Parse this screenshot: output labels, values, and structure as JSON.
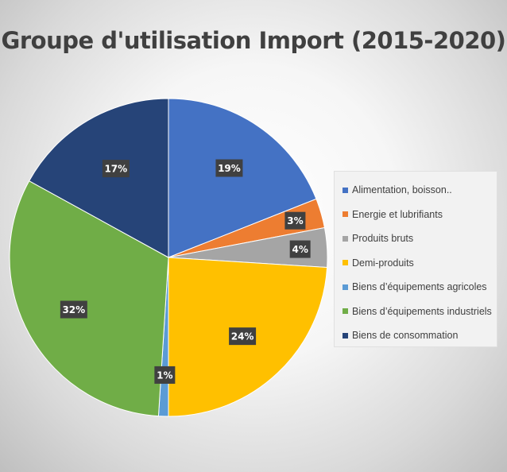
{
  "chart_data": {
    "type": "pie",
    "title": "Groupe d'utilisation Import (2015-2020)",
    "legend_position": "right",
    "slices": [
      {
        "label": "Alimentation, boisson..",
        "value": 19,
        "display": "19%",
        "color": "#4472C4"
      },
      {
        "label": "Energie et lubrifiants",
        "value": 3,
        "display": "3%",
        "color": "#ED7D31"
      },
      {
        "label": "Produits bruts",
        "value": 4,
        "display": "4%",
        "color": "#A5A5A5"
      },
      {
        "label": "Demi-produits",
        "value": 24,
        "display": "24%",
        "color": "#FFC000"
      },
      {
        "label": "Biens d’équipements agricoles",
        "value": 1,
        "display": "1%",
        "color": "#5B9BD5"
      },
      {
        "label": "Biens d’équipements industriels",
        "value": 32,
        "display": "32%",
        "color": "#70AD47"
      },
      {
        "label": "Biens de consommation",
        "value": 17,
        "display": "17%",
        "color": "#264478"
      }
    ]
  }
}
